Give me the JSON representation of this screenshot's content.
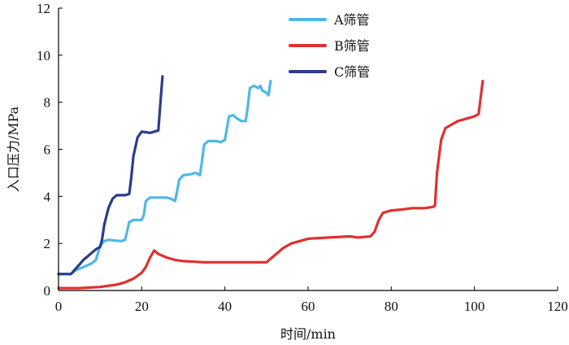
{
  "chart_data": {
    "type": "line",
    "xlabel": "时间/min",
    "ylabel": "入口压力/MPa",
    "xlim": [
      0,
      120
    ],
    "ylim": [
      0,
      12
    ],
    "x_ticks": [
      0,
      20,
      40,
      60,
      80,
      100,
      120
    ],
    "y_ticks": [
      0,
      2,
      4,
      6,
      8,
      10,
      12
    ],
    "grid": false,
    "legend_position": "top-center",
    "series": [
      {
        "name": "A筛管",
        "color": "#4db8e8",
        "points": [
          [
            0,
            0.7
          ],
          [
            3,
            0.7
          ],
          [
            4,
            0.85
          ],
          [
            6,
            1.0
          ],
          [
            8,
            1.15
          ],
          [
            9,
            1.3
          ],
          [
            10,
            1.9
          ],
          [
            11,
            2.1
          ],
          [
            12,
            2.15
          ],
          [
            15,
            2.1
          ],
          [
            16,
            2.15
          ],
          [
            17,
            2.9
          ],
          [
            18,
            3.0
          ],
          [
            20,
            3.0
          ],
          [
            20.5,
            3.2
          ],
          [
            21,
            3.8
          ],
          [
            22,
            3.95
          ],
          [
            24,
            3.95
          ],
          [
            26,
            3.95
          ],
          [
            27,
            3.9
          ],
          [
            28,
            3.8
          ],
          [
            28.5,
            4.2
          ],
          [
            29,
            4.7
          ],
          [
            30,
            4.9
          ],
          [
            32,
            4.95
          ],
          [
            33,
            5.0
          ],
          [
            34,
            4.9
          ],
          [
            34.5,
            5.5
          ],
          [
            35,
            6.2
          ],
          [
            36,
            6.35
          ],
          [
            38,
            6.35
          ],
          [
            39,
            6.3
          ],
          [
            40,
            6.4
          ],
          [
            40.5,
            6.9
          ],
          [
            41,
            7.4
          ],
          [
            42,
            7.45
          ],
          [
            43,
            7.3
          ],
          [
            44,
            7.2
          ],
          [
            45,
            7.2
          ],
          [
            45.5,
            7.8
          ],
          [
            46,
            8.6
          ],
          [
            47,
            8.7
          ],
          [
            48,
            8.6
          ],
          [
            48.5,
            8.7
          ],
          [
            49,
            8.5
          ],
          [
            50,
            8.4
          ],
          [
            50.5,
            8.3
          ],
          [
            51,
            8.9
          ]
        ]
      },
      {
        "name": "B筛管",
        "color": "#e03030",
        "points": [
          [
            0,
            0.1
          ],
          [
            5,
            0.1
          ],
          [
            10,
            0.15
          ],
          [
            14,
            0.25
          ],
          [
            16,
            0.35
          ],
          [
            18,
            0.5
          ],
          [
            20,
            0.75
          ],
          [
            21,
            1.0
          ],
          [
            22,
            1.4
          ],
          [
            23,
            1.7
          ],
          [
            24,
            1.55
          ],
          [
            26,
            1.4
          ],
          [
            28,
            1.3
          ],
          [
            30,
            1.25
          ],
          [
            35,
            1.2
          ],
          [
            40,
            1.2
          ],
          [
            45,
            1.2
          ],
          [
            48,
            1.2
          ],
          [
            50,
            1.2
          ],
          [
            51,
            1.35
          ],
          [
            52,
            1.5
          ],
          [
            54,
            1.8
          ],
          [
            56,
            2.0
          ],
          [
            60,
            2.2
          ],
          [
            65,
            2.25
          ],
          [
            70,
            2.3
          ],
          [
            72,
            2.25
          ],
          [
            75,
            2.3
          ],
          [
            76,
            2.5
          ],
          [
            77,
            3.0
          ],
          [
            78,
            3.3
          ],
          [
            80,
            3.4
          ],
          [
            83,
            3.45
          ],
          [
            85,
            3.5
          ],
          [
            88,
            3.5
          ],
          [
            90,
            3.55
          ],
          [
            90.5,
            3.6
          ],
          [
            91,
            5.0
          ],
          [
            92,
            6.4
          ],
          [
            93,
            6.9
          ],
          [
            94,
            7.0
          ],
          [
            96,
            7.2
          ],
          [
            98,
            7.3
          ],
          [
            100,
            7.4
          ],
          [
            101,
            7.5
          ],
          [
            101.5,
            8.2
          ],
          [
            102,
            8.9
          ]
        ]
      },
      {
        "name": "C筛管",
        "color": "#2c3c8c",
        "points": [
          [
            0,
            0.7
          ],
          [
            3,
            0.7
          ],
          [
            4,
            0.9
          ],
          [
            6,
            1.3
          ],
          [
            8,
            1.6
          ],
          [
            9,
            1.75
          ],
          [
            10,
            1.85
          ],
          [
            10.5,
            2.2
          ],
          [
            11,
            2.8
          ],
          [
            12,
            3.5
          ],
          [
            13,
            3.9
          ],
          [
            14,
            4.05
          ],
          [
            16,
            4.05
          ],
          [
            17,
            4.1
          ],
          [
            17.5,
            4.8
          ],
          [
            18,
            5.7
          ],
          [
            19,
            6.5
          ],
          [
            20,
            6.75
          ],
          [
            22,
            6.7
          ],
          [
            23,
            6.75
          ],
          [
            24,
            6.8
          ],
          [
            24.5,
            8.0
          ],
          [
            25,
            9.1
          ]
        ]
      }
    ]
  }
}
